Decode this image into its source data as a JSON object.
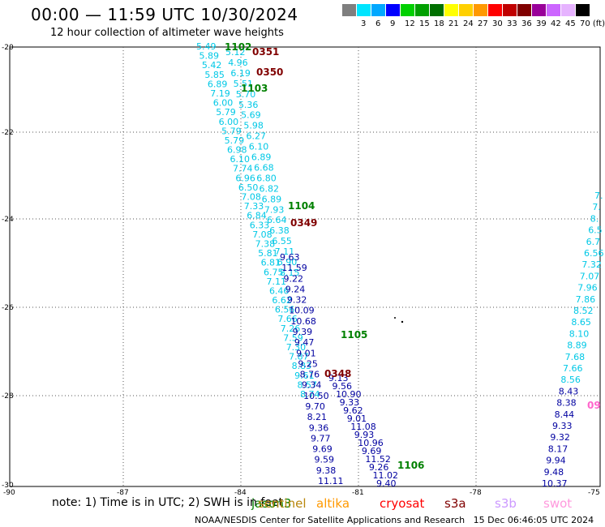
{
  "title": "00:00 — 11:59 UTC 10/30/2024",
  "subtitle": "12 hour collection of altimeter wave heights",
  "legend": [
    {
      "label": "",
      "color": "#7f7f7f"
    },
    {
      "label": "3",
      "color": "#00e5ff"
    },
    {
      "label": "6",
      "color": "#00a8ff"
    },
    {
      "label": "9",
      "color": "#0000ff"
    },
    {
      "label": "12",
      "color": "#00d000"
    },
    {
      "label": "15",
      "color": "#00a000"
    },
    {
      "label": "18",
      "color": "#007000"
    },
    {
      "label": "21",
      "color": "#ffff00"
    },
    {
      "label": "24",
      "color": "#ffd000"
    },
    {
      "label": "27",
      "color": "#ff9900"
    },
    {
      "label": "30",
      "color": "#ff0000"
    },
    {
      "label": "33",
      "color": "#c00000"
    },
    {
      "label": "36",
      "color": "#800000"
    },
    {
      "label": "39",
      "color": "#990099"
    },
    {
      "label": "42",
      "color": "#cc66ff"
    },
    {
      "label": "45",
      "color": "#e6b3ff"
    },
    {
      "label": "70 (ft)",
      "color": "#000000"
    }
  ],
  "axes": {
    "y_ticks": [
      "-20",
      "-22",
      "-24",
      "-26",
      "-28",
      "-30"
    ],
    "x_ticks": [
      "-90",
      "-87",
      "-84",
      "-81",
      "-78",
      "-75"
    ]
  },
  "passes": [
    {
      "label": "1102",
      "color": "#008000"
    },
    {
      "label": "0351",
      "color": "#800000"
    },
    {
      "label": "0350",
      "color": "#800000"
    },
    {
      "label": "1103",
      "color": "#008000"
    },
    {
      "label": "1104",
      "color": "#008000"
    },
    {
      "label": "0349",
      "color": "#800000"
    },
    {
      "label": "1105",
      "color": "#008000"
    },
    {
      "label": "0348",
      "color": "#800000"
    },
    {
      "label": "1106",
      "color": "#008000"
    },
    {
      "label": "09",
      "color": "#ff66cc"
    }
  ],
  "tracks": {
    "left_cyan": [
      "5.49",
      "5.89",
      "5.42",
      "5.85",
      "6.89",
      "7.19",
      "6.00",
      "5.79",
      "6.00",
      "5.79",
      "5.79",
      "6.98",
      "6.10",
      "7.74",
      "6.96",
      "6.50",
      "7.08",
      "7.33",
      "6.84",
      "6.33",
      "7.08",
      "7.38",
      "5.81",
      "6.81",
      "6.75",
      "7.11",
      "6.46",
      "6.62",
      "6.56",
      "7.66",
      "7.26",
      "7.59",
      "7.30",
      "7.87",
      "8.83",
      "9.61",
      "8.57",
      "8.74"
    ],
    "mid_cyan": [
      "5.12",
      "4.96",
      "6.19",
      "5.51",
      "5.70",
      "5.36",
      "5.69",
      "5.98",
      "6.27",
      "6.10",
      "6.89",
      "6.68",
      "6.80",
      "6.82",
      "6.89",
      "7.93",
      "6.64",
      "6.38",
      "6.55",
      "7.11",
      "6.90",
      "8.15"
    ],
    "blue_a": [
      "9.63",
      "11.59",
      "9.22",
      "9.24",
      "9.32",
      "10.09",
      "10.68",
      "9.39",
      "9.47",
      "9.01",
      "9.25",
      "8.76",
      "9.34",
      "10.50",
      "9.70",
      "8.21",
      "9.36",
      "9.77",
      "9.69",
      "9.59",
      "9.38",
      "11.11"
    ],
    "blue_b": [
      "9.13",
      "9.56",
      "10.90",
      "9.33",
      "9.62",
      "9.01",
      "11.08",
      "9.93",
      "10.96",
      "9.69",
      "11.52",
      "9.26",
      "11.02",
      "9.40"
    ],
    "right_edge": [
      "7.",
      "7.",
      "8.",
      "6.5",
      "6.7",
      "6.56",
      "7.32",
      "7.07",
      "7.96",
      "7.86",
      "8.52",
      "8.65",
      "8.10",
      "8.89",
      "7.68",
      "7.66",
      "8.56",
      "8.43",
      "8.38",
      "8.44",
      "9.33",
      "9.32",
      "8.17",
      "9.94",
      "9.48",
      "10.37"
    ]
  },
  "missions": [
    {
      "label": "jason3",
      "color": "#008000"
    },
    {
      "label": "sentinel",
      "color": "#b8860b"
    },
    {
      "label": "altika",
      "color": "#ff9900"
    },
    {
      "label": "cryosat",
      "color": "#ff0000"
    },
    {
      "label": "s3a",
      "color": "#800000"
    },
    {
      "label": "s3b",
      "color": "#cc99ff"
    },
    {
      "label": "swot",
      "color": "#ff99dd"
    }
  ],
  "note": "note: 1) Time is in UTC; 2) SWH is in feet",
  "credit": "NOAA/NESDIS Center for Satellite Applications and Research   15 Dec 06:46:05 UTC 2024"
}
